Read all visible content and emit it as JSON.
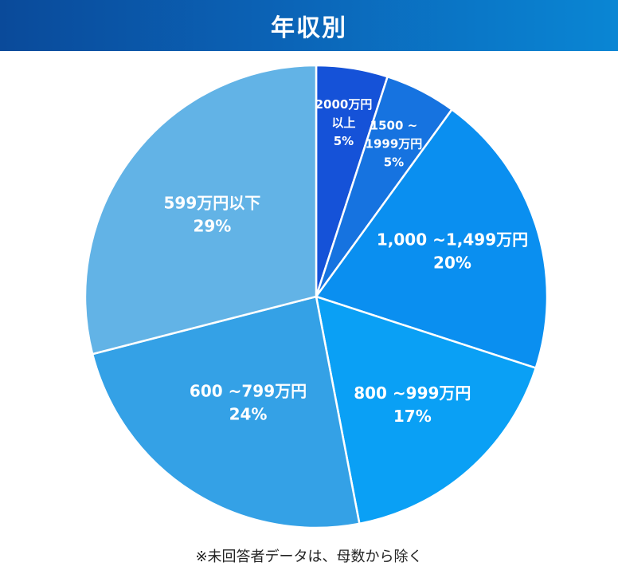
{
  "header": {
    "title": "年収別"
  },
  "footnote": "※未回答者データは、母数から除く",
  "chart_data": {
    "type": "pie",
    "title": "年収別",
    "start_angle_deg": 0,
    "direction": "clockwise",
    "slices": [
      {
        "label_lines": [
          "2000万円",
          "以上"
        ],
        "value": 5,
        "pct_label": "5%",
        "color": "#1552d8"
      },
      {
        "label_lines": [
          "1500 ~",
          "1999万円"
        ],
        "value": 5,
        "pct_label": "5%",
        "color": "#1673e0"
      },
      {
        "label_lines": [
          "1,000 ~1,499万円"
        ],
        "value": 20,
        "pct_label": "20%",
        "color": "#0a8ff0"
      },
      {
        "label_lines": [
          "800 ~999万円"
        ],
        "value": 17,
        "pct_label": "17%",
        "color": "#0aa0f5"
      },
      {
        "label_lines": [
          "600 ~799万円"
        ],
        "value": 24,
        "pct_label": "24%",
        "color": "#34a1e6"
      },
      {
        "label_lines": [
          "599万円以下"
        ],
        "value": 29,
        "pct_label": "29%",
        "color": "#62b3e6"
      }
    ]
  }
}
